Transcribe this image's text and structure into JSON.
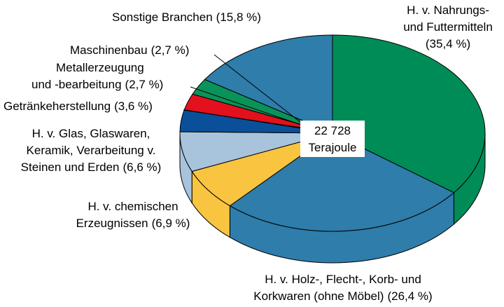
{
  "chart_data": {
    "type": "pie",
    "categories": [
      [
        "H. v. Nahrungs-",
        "und Futtermitteln"
      ],
      [
        "H. v. Holz-, Flecht-, Korb- und",
        "Korkwaren (ohne Möbel)"
      ],
      [
        "H. v. chemischen",
        "Erzeugnissen"
      ],
      [
        "H. v. Glas, Glaswaren,",
        "Keramik, Verarbeitung v.",
        "Steinen und Erden"
      ],
      [
        "Getränkeherstellung"
      ],
      [
        "Metallerzeugung",
        "und -bearbeitung"
      ],
      [
        "Maschinenbau"
      ],
      [
        "Sonstige Branchen"
      ]
    ],
    "values": [
      35.4,
      26.4,
      6.9,
      6.6,
      3.6,
      2.7,
      2.7,
      15.8
    ],
    "value_labels": [
      "(35,4 %)",
      "(26,4 %)",
      "(6,9 %)",
      "(6,6 %)",
      "(3,6 %)",
      "(2,7 %)",
      "(2,7 %)",
      "(15,8 %)"
    ],
    "colors": [
      "#008c57",
      "#2e7dab",
      "#f9c440",
      "#a8c4dc",
      "#0a4f9a",
      "#e3101e",
      "#0a9358",
      "#2e7dab"
    ],
    "center_label": [
      "22 728",
      "Terajoule"
    ]
  }
}
